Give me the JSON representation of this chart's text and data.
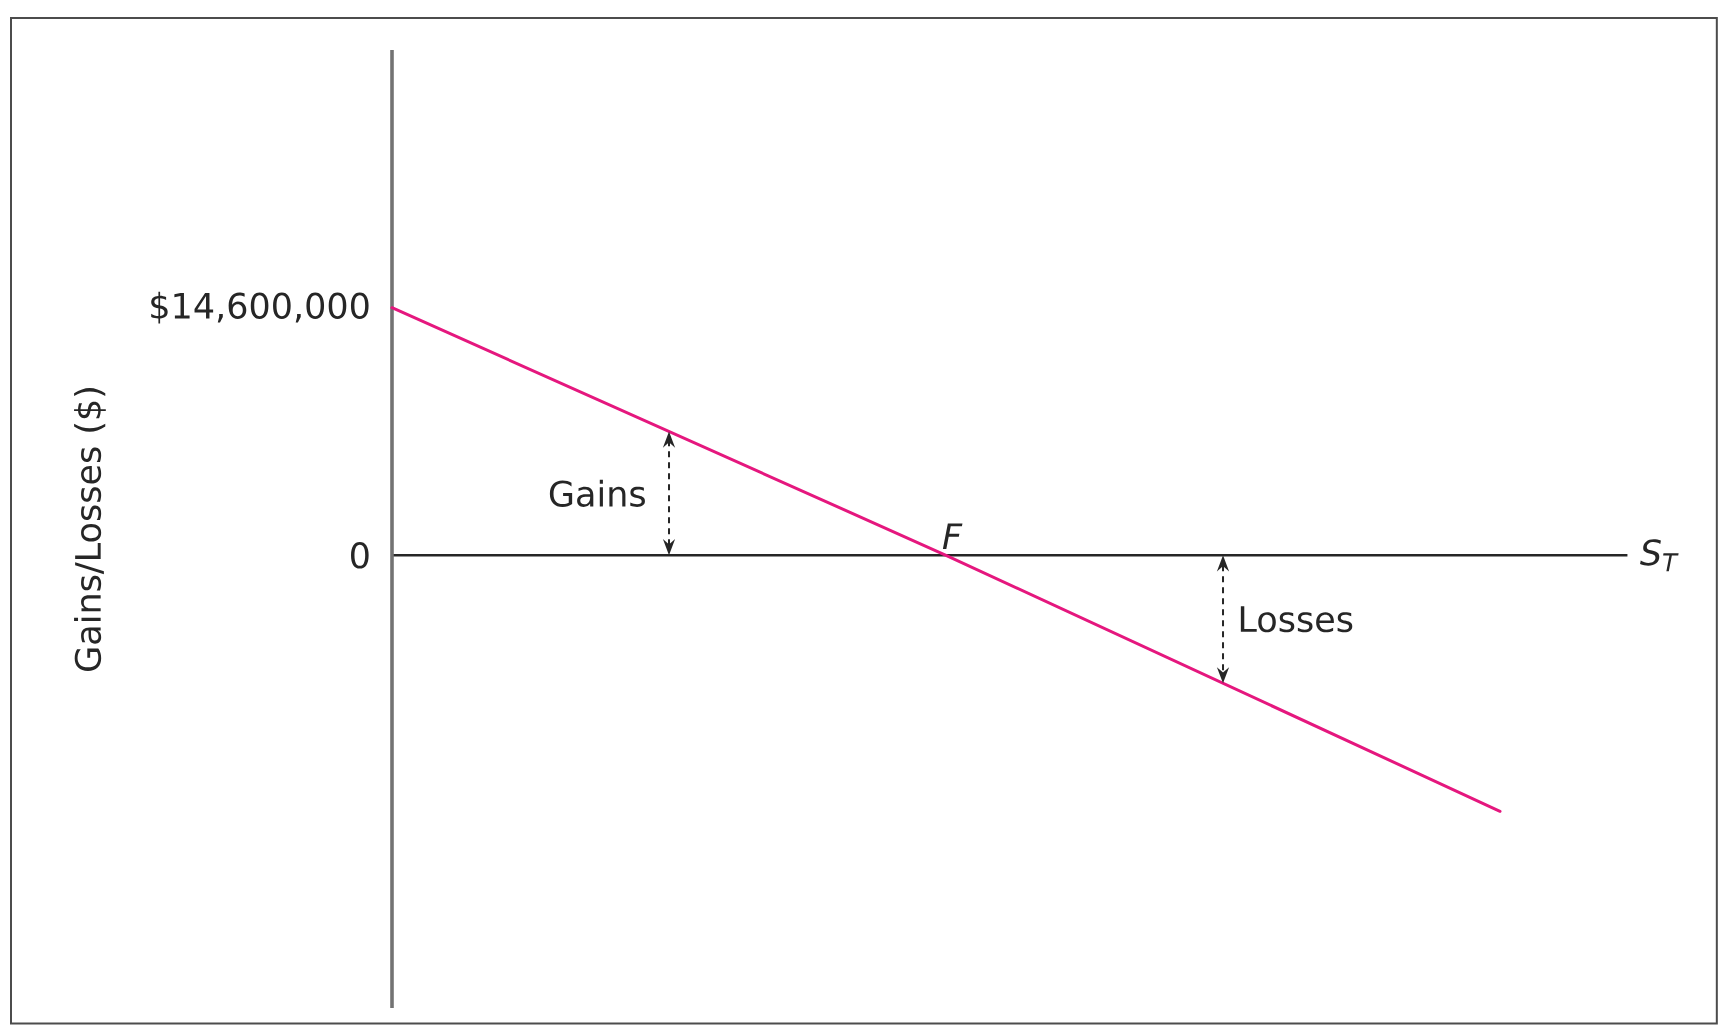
{
  "chart_data": {
    "type": "line",
    "xlabel": "S$_{T}$",
    "ylabel": "Gains/Losses ($)",
    "categories": [
      null,
      "F",
      null
    ],
    "series": [
      {
        "color": "#e5177e",
        "values": [
          14600000,
          0,
          -15100000
        ]
      }
    ],
    "ylim": [
      -26700000,
      29800000
    ],
    "yticks": [
      0,
      {
        "value": 14600000,
        "label": "$14,600,000"
      }
    ],
    "annotations": [
      "Gains",
      "Losses"
    ]
  }
}
